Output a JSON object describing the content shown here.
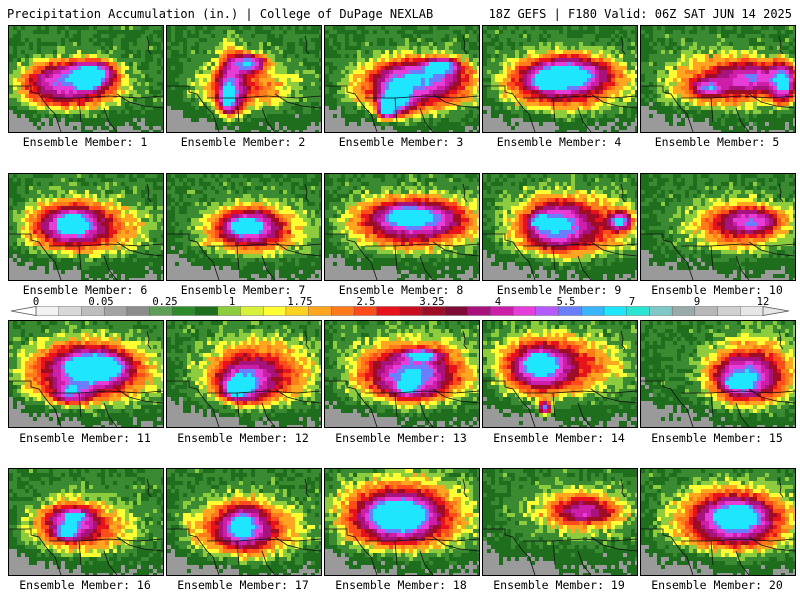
{
  "header": {
    "title_left": "Precipitation Accumulation (in.) | College of DuPage NEXLAB",
    "title_right": "18Z GEFS | F180 Valid: 06Z SAT JUN 14 2025"
  },
  "colors": {
    "background": "#ffffff",
    "scale": [
      "#f2f2f2",
      "#d8d8d8",
      "#bdbdbd",
      "#a3a3a3",
      "#8c8c8c",
      "#5f9e59",
      "#2e8b2c",
      "#1f6e1e",
      "#8ccc3d",
      "#d9f03a",
      "#ffff33",
      "#ffd21f",
      "#ffa51f",
      "#ff7b1a",
      "#ff4a1a",
      "#e8121c",
      "#c80e1e",
      "#9e0c26",
      "#800a36",
      "#a8127c",
      "#cc1ea8",
      "#e63cd8",
      "#b45aff",
      "#6a7fff",
      "#3ab4ff",
      "#1ee6ff",
      "#28e6d2",
      "#7ec8c8",
      "#9aaaaa",
      "#b8b8b8",
      "#d0d0d0",
      "#e6e6e6"
    ]
  },
  "colorbar": {
    "tick_labels": [
      "0",
      "0.05",
      "0.25",
      "1",
      "1.75",
      "2.5",
      "3.25",
      "4",
      "5.5",
      "7",
      "9",
      "12"
    ],
    "left_arrow_icon": "triangle-left-icon",
    "right_arrow_icon": "triangle-right-icon"
  },
  "panels": [
    {
      "label": "Ensemble Member: 1",
      "blobs": [
        [
          55,
          62,
          62,
          28,
          0.85
        ],
        [
          60,
          50,
          45,
          20,
          1.1
        ],
        [
          82,
          45,
          22,
          12,
          1.9
        ],
        [
          78,
          55,
          10,
          7,
          2.3
        ]
      ]
    },
    {
      "label": "Ensemble Member: 2",
      "blobs": [
        [
          75,
          60,
          60,
          30,
          0.6
        ],
        [
          62,
          58,
          16,
          40,
          1.2
        ],
        [
          80,
          35,
          18,
          10,
          1.8
        ],
        [
          58,
          70,
          7,
          14,
          1.9
        ]
      ]
    },
    {
      "label": "Ensemble Member: 3",
      "blobs": [
        [
          85,
          62,
          68,
          32,
          0.95
        ],
        [
          95,
          48,
          50,
          20,
          1.25
        ],
        [
          70,
          70,
          18,
          18,
          1.8
        ],
        [
          60,
          80,
          10,
          12,
          2.3
        ],
        [
          115,
          38,
          18,
          8,
          1.8
        ]
      ]
    },
    {
      "label": "Ensemble Member: 4",
      "blobs": [
        [
          75,
          58,
          68,
          32,
          0.95
        ],
        [
          85,
          45,
          50,
          20,
          1.25
        ],
        [
          75,
          50,
          28,
          12,
          1.7
        ],
        [
          60,
          55,
          12,
          6,
          2.3
        ]
      ]
    },
    {
      "label": "Ensemble Member: 5",
      "blobs": [
        [
          80,
          55,
          72,
          35,
          0.65
        ],
        [
          110,
          50,
          40,
          18,
          1.1
        ],
        [
          140,
          55,
          14,
          22,
          1.7
        ],
        [
          65,
          60,
          18,
          10,
          1.2
        ]
      ]
    },
    {
      "label": "Ensemble Member: 6",
      "blobs": [
        [
          70,
          52,
          68,
          32,
          0.9
        ],
        [
          60,
          48,
          32,
          20,
          1.2
        ],
        [
          62,
          48,
          14,
          9,
          2.2
        ]
      ]
    },
    {
      "label": "Ensemble Member: 7",
      "blobs": [
        [
          85,
          55,
          58,
          30,
          0.8
        ],
        [
          80,
          50,
          32,
          18,
          1.2
        ],
        [
          75,
          50,
          14,
          8,
          1.8
        ]
      ]
    },
    {
      "label": "Ensemble Member: 8",
      "blobs": [
        [
          85,
          48,
          72,
          32,
          0.95
        ],
        [
          90,
          42,
          50,
          18,
          1.25
        ],
        [
          80,
          40,
          18,
          8,
          1.8
        ]
      ]
    },
    {
      "label": "Ensemble Member: 9",
      "blobs": [
        [
          85,
          50,
          68,
          36,
          1.0
        ],
        [
          70,
          50,
          30,
          24,
          1.25
        ],
        [
          55,
          45,
          10,
          7,
          1.8
        ],
        [
          135,
          45,
          12,
          10,
          1.8
        ]
      ]
    },
    {
      "label": "Ensemble Member: 10",
      "blobs": [
        [
          95,
          50,
          58,
          30,
          0.7
        ],
        [
          110,
          45,
          32,
          14,
          1.05
        ]
      ]
    },
    {
      "label": "Ensemble Member: 11",
      "blobs": [
        [
          75,
          50,
          75,
          38,
          0.95
        ],
        [
          80,
          45,
          42,
          22,
          1.4
        ],
        [
          85,
          45,
          26,
          12,
          2.4
        ],
        [
          60,
          70,
          22,
          12,
          1.2
        ]
      ]
    },
    {
      "label": "Ensemble Member: 12",
      "blobs": [
        [
          90,
          50,
          62,
          38,
          0.9
        ],
        [
          75,
          60,
          28,
          22,
          1.3
        ],
        [
          68,
          65,
          12,
          10,
          2.3
        ]
      ]
    },
    {
      "label": "Ensemble Member: 13",
      "blobs": [
        [
          85,
          48,
          72,
          38,
          0.9
        ],
        [
          85,
          55,
          38,
          24,
          1.25
        ],
        [
          95,
          32,
          20,
          6,
          1.8
        ],
        [
          80,
          65,
          10,
          7,
          1.8
        ]
      ]
    },
    {
      "label": "Ensemble Member: 14",
      "blobs": [
        [
          70,
          42,
          75,
          35,
          0.85
        ],
        [
          55,
          45,
          30,
          24,
          1.3
        ],
        [
          55,
          40,
          14,
          10,
          2.0
        ],
        [
          60,
          85,
          8,
          8,
          1.8
        ]
      ]
    },
    {
      "label": "Ensemble Member: 15",
      "blobs": [
        [
          110,
          50,
          52,
          42,
          0.85
        ],
        [
          100,
          55,
          32,
          22,
          1.3
        ],
        [
          95,
          60,
          12,
          7,
          2.3
        ]
      ]
    },
    {
      "label": "Ensemble Member: 16",
      "blobs": [
        [
          70,
          58,
          60,
          32,
          0.75
        ],
        [
          60,
          50,
          26,
          18,
          1.3
        ],
        [
          55,
          62,
          10,
          6,
          1.9
        ],
        [
          65,
          45,
          8,
          5,
          1.9
        ]
      ]
    },
    {
      "label": "Ensemble Member: 17",
      "blobs": [
        [
          75,
          60,
          65,
          35,
          0.85
        ],
        [
          75,
          55,
          26,
          24,
          1.25
        ],
        [
          72,
          55,
          10,
          9,
          1.8
        ]
      ]
    },
    {
      "label": "Ensemble Member: 18",
      "blobs": [
        [
          75,
          45,
          75,
          42,
          0.95
        ],
        [
          72,
          45,
          44,
          26,
          1.3
        ],
        [
          70,
          45,
          26,
          14,
          2.1
        ]
      ]
    },
    {
      "label": "Ensemble Member: 19",
      "blobs": [
        [
          95,
          40,
          60,
          28,
          0.55
        ],
        [
          100,
          40,
          32,
          14,
          0.8
        ]
      ]
    },
    {
      "label": "Ensemble Member: 20",
      "blobs": [
        [
          90,
          50,
          70,
          38,
          0.85
        ],
        [
          92,
          48,
          42,
          26,
          1.3
        ],
        [
          95,
          45,
          20,
          10,
          2.2
        ]
      ]
    }
  ]
}
